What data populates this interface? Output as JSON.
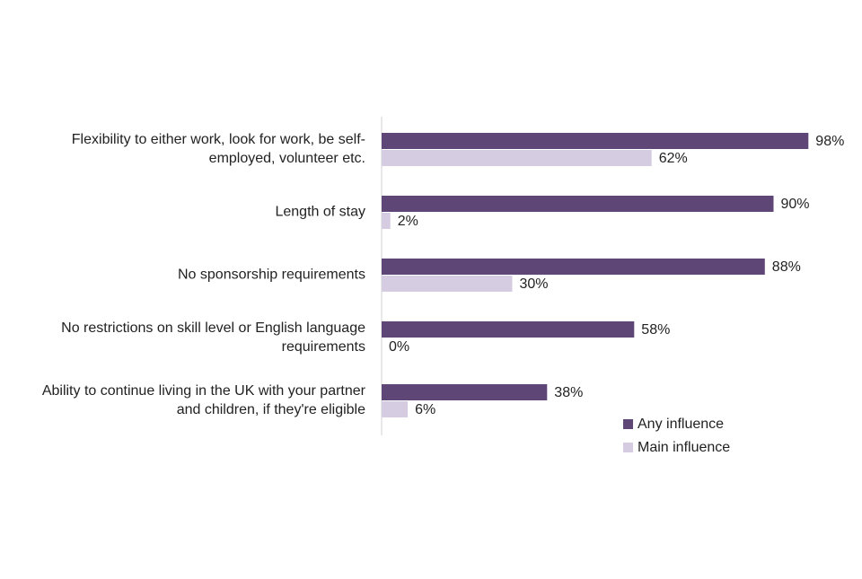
{
  "chart_data": {
    "type": "bar",
    "orientation": "horizontal",
    "categories": [
      [
        "Flexibility to either work, look for work, be self-",
        "employed, volunteer etc."
      ],
      [
        "Length of stay"
      ],
      [
        "No sponsorship requirements"
      ],
      [
        "No restrictions on skill level or English language",
        "requirements"
      ],
      [
        "Ability to continue living in the UK with your partner",
        "and children, if they're eligible"
      ]
    ],
    "series": [
      {
        "name": "Any influence",
        "color": "#5e4776",
        "values": [
          98,
          90,
          88,
          58,
          38
        ],
        "value_labels": [
          "98%",
          "90%",
          "88%",
          "58%",
          "38%"
        ]
      },
      {
        "name": "Main influence",
        "color": "#d5cce1",
        "values": [
          62,
          2,
          30,
          0,
          6
        ],
        "value_labels": [
          "62%",
          "2%",
          "30%",
          "0%",
          "6%"
        ]
      }
    ],
    "legend": "bottom-right"
  }
}
